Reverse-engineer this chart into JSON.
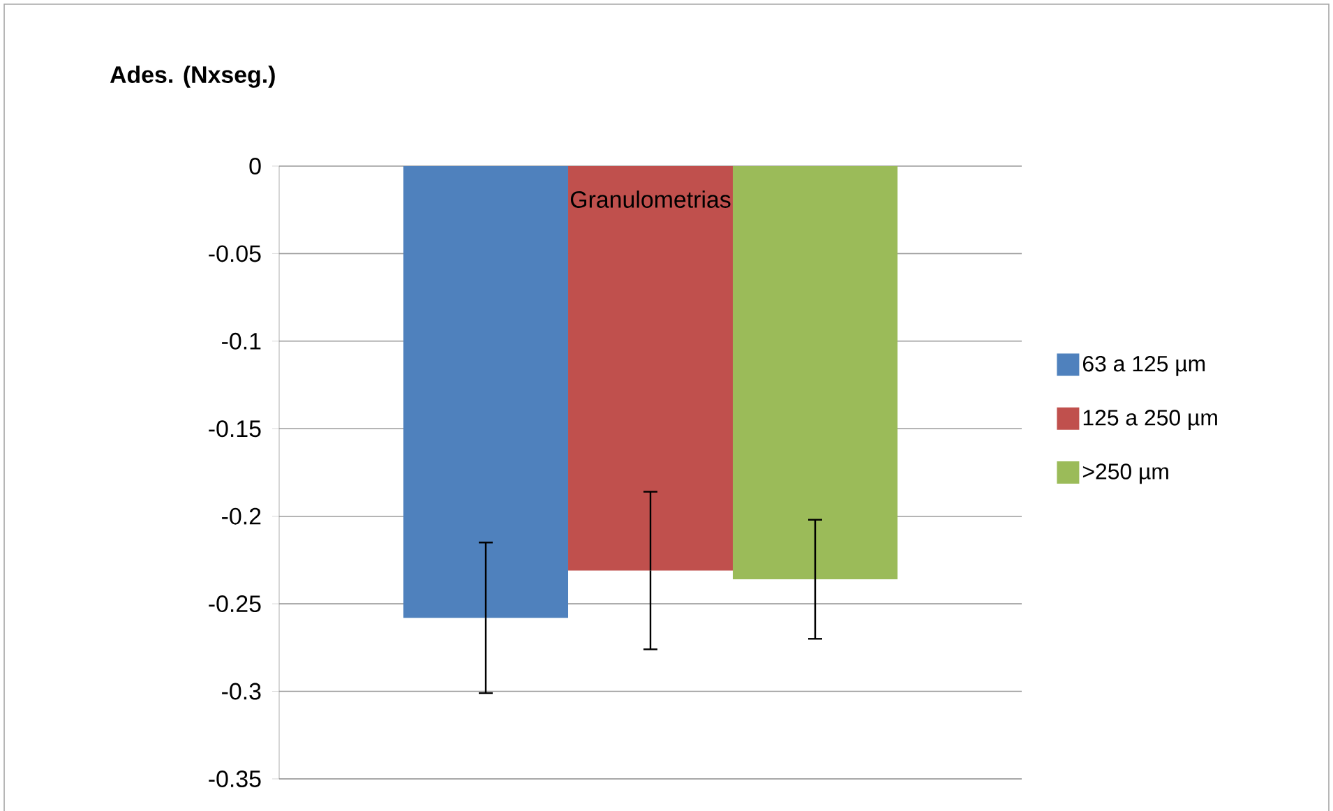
{
  "chart_data": {
    "type": "bar",
    "ylabel": "Ades. (Nxseg.)",
    "categories": [
      "Granulometrias"
    ],
    "series": [
      {
        "name": "63 a 125 µm",
        "color": "#4f81bd",
        "values": [
          -0.258
        ],
        "errors": [
          0.043
        ]
      },
      {
        "name": "125 a 250 µm",
        "color": "#c0504d",
        "values": [
          -0.231
        ],
        "errors": [
          0.045
        ]
      },
      {
        "name": ">250 µm",
        "color": "#9bbb59",
        "values": [
          -0.236
        ],
        "errors": [
          0.034
        ]
      }
    ],
    "ylim": [
      -0.35,
      0
    ],
    "yticks": [
      -0.35,
      -0.3,
      -0.25,
      -0.2,
      -0.15,
      -0.1,
      -0.05,
      0
    ],
    "grid": "y",
    "legend": "right"
  }
}
